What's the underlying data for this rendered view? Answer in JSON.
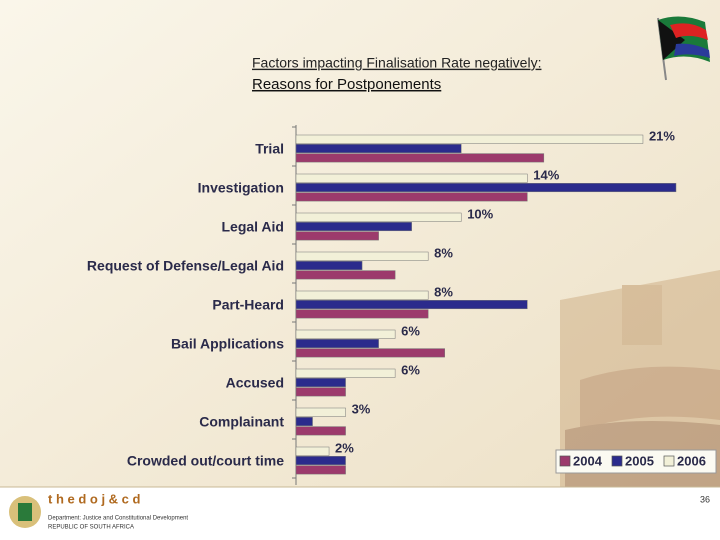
{
  "chart_data": {
    "type": "hbar",
    "title": "Factors impacting Finalisation Rate negatively:",
    "subtitle": "Reasons for Postponements",
    "categories": [
      "Trial",
      "Investigation",
      "Legal Aid",
      "Request of Defense/Legal Aid",
      "Part-Heard",
      "Bail Applications",
      "Accused",
      "Complainant",
      "Crowded out/court time"
    ],
    "series": [
      {
        "name": "2004",
        "color": "#9c3a6c",
        "values": [
          15,
          14,
          5,
          6,
          8,
          9,
          3,
          3,
          3
        ]
      },
      {
        "name": "2005",
        "color": "#2b2b8c",
        "values": [
          10,
          23,
          7,
          4,
          14,
          5,
          3,
          1,
          3
        ]
      },
      {
        "name": "2006",
        "color": "#f2f0d8",
        "values": [
          21,
          14,
          10,
          8,
          8,
          6,
          6,
          3,
          2
        ],
        "value_labels": [
          "21%",
          "14%",
          "10%",
          "8%",
          "8%",
          "6%",
          "6%",
          "3%",
          "2%"
        ]
      }
    ],
    "xlim": [
      0,
      23
    ],
    "legend": "bottom-right"
  },
  "footer": {
    "brand": "t h e   d o j & c d",
    "department": "Department: Justice and Constitutional Development",
    "country": "REPUBLIC OF SOUTH AFRICA",
    "page": "36"
  }
}
